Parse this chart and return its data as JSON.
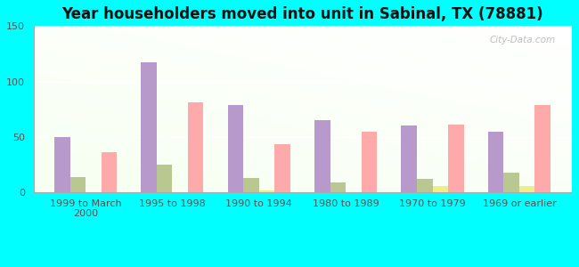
{
  "title": "Year householders moved into unit in Sabinal, TX (78881)",
  "categories": [
    "1999 to March\n2000",
    "1995 to 1998",
    "1990 to 1994",
    "1980 to 1989",
    "1970 to 1979",
    "1969 or earlier"
  ],
  "series": {
    "White Non-Hispanic": [
      50,
      117,
      79,
      65,
      60,
      55
    ],
    "Other Race": [
      14,
      25,
      13,
      9,
      12,
      18
    ],
    "Two or More Races": [
      0,
      0,
      2,
      0,
      6,
      6
    ],
    "Hispanic or Latino": [
      36,
      81,
      43,
      55,
      61,
      79
    ]
  },
  "colors": {
    "White Non-Hispanic": "#b899cc",
    "Other Race": "#b8c890",
    "Two or More Races": "#eeee88",
    "Hispanic or Latino": "#ffaaaa"
  },
  "ylim": [
    0,
    150
  ],
  "yticks": [
    0,
    50,
    100,
    150
  ],
  "background_color": "#00ffff",
  "watermark": "City-Data.com",
  "bar_width": 0.18,
  "title_fontsize": 12,
  "tick_fontsize": 8,
  "legend_fontsize": 8
}
